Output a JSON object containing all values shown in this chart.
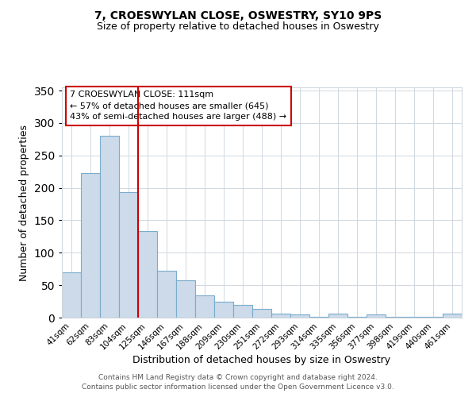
{
  "title": "7, CROESWYLAN CLOSE, OSWESTRY, SY10 9PS",
  "subtitle": "Size of property relative to detached houses in Oswestry",
  "xlabel": "Distribution of detached houses by size in Oswestry",
  "ylabel": "Number of detached properties",
  "footer_line1": "Contains HM Land Registry data © Crown copyright and database right 2024.",
  "footer_line2": "Contains public sector information licensed under the Open Government Licence v3.0.",
  "categories": [
    "41sqm",
    "62sqm",
    "83sqm",
    "104sqm",
    "125sqm",
    "146sqm",
    "167sqm",
    "188sqm",
    "209sqm",
    "230sqm",
    "251sqm",
    "272sqm",
    "293sqm",
    "314sqm",
    "335sqm",
    "356sqm",
    "377sqm",
    "398sqm",
    "419sqm",
    "440sqm",
    "461sqm"
  ],
  "values": [
    70,
    223,
    280,
    193,
    133,
    72,
    57,
    34,
    25,
    20,
    14,
    6,
    5,
    1,
    6,
    1,
    5,
    1,
    1,
    1,
    6
  ],
  "bar_color": "#ccdaea",
  "bar_edge_color": "#7aaccc",
  "vline_at_index": 3,
  "annotation_title": "7 CROESWYLAN CLOSE: 111sqm",
  "annotation_line1": "← 57% of detached houses are smaller (645)",
  "annotation_line2": "43% of semi-detached houses are larger (488) →",
  "annotation_box_color": "#ffffff",
  "annotation_box_edge": "#cc0000",
  "vline_color": "#cc0000",
  "ylim": [
    0,
    355
  ],
  "yticks": [
    0,
    50,
    100,
    150,
    200,
    250,
    300,
    350
  ],
  "background_color": "#ffffff",
  "grid_color": "#d0d8e0"
}
